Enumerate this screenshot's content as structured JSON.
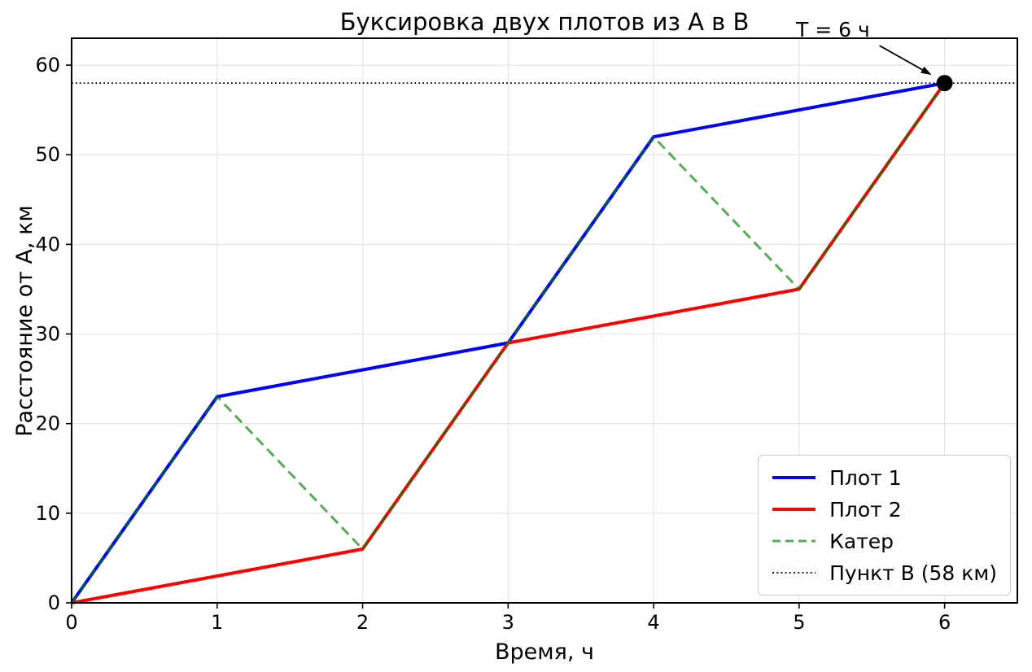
{
  "chart_data": {
    "type": "line",
    "title": "Буксировка двух плотов из А в В",
    "xlabel": "Время, ч",
    "ylabel": "Расстояние от А, км",
    "xlim": [
      0,
      6.5
    ],
    "ylim": [
      0,
      63
    ],
    "xticks": [
      0,
      1,
      2,
      3,
      4,
      5,
      6
    ],
    "yticks": [
      0,
      10,
      20,
      30,
      40,
      50,
      60
    ],
    "grid": true,
    "grid_color": "#e6e6e6",
    "legend_position": "lower right",
    "series": [
      {
        "name": "Плот 1",
        "color": "#0000ff",
        "style": "solid",
        "width": 4,
        "opacity": 1,
        "x": [
          0,
          1,
          2,
          3,
          4,
          5,
          6
        ],
        "y": [
          0,
          23,
          26,
          29,
          52,
          55,
          58
        ]
      },
      {
        "name": "Плот 2",
        "color": "#ff0000",
        "style": "solid",
        "width": 4,
        "opacity": 1,
        "x": [
          0,
          1,
          2,
          3,
          4,
          5,
          6
        ],
        "y": [
          0,
          3,
          6,
          29,
          32,
          35,
          58
        ]
      },
      {
        "name": "Катер",
        "color": "#008000",
        "style": "dashed",
        "width": 3,
        "opacity": 0.66,
        "x": [
          0,
          1,
          2,
          3,
          4,
          5,
          6
        ],
        "y": [
          0,
          23,
          6,
          29,
          52,
          35,
          58
        ]
      },
      {
        "name": "Пункт В (58 км)",
        "color": "#000000",
        "style": "dotted",
        "width": 1.8,
        "opacity": 1,
        "x": [
          0,
          6.5
        ],
        "y": [
          58,
          58
        ]
      }
    ],
    "end_marker": {
      "x": 6,
      "y": 58,
      "color": "#000000"
    },
    "annotation": {
      "text": "T = 6 ч",
      "target_x": 6,
      "target_y": 58
    }
  }
}
